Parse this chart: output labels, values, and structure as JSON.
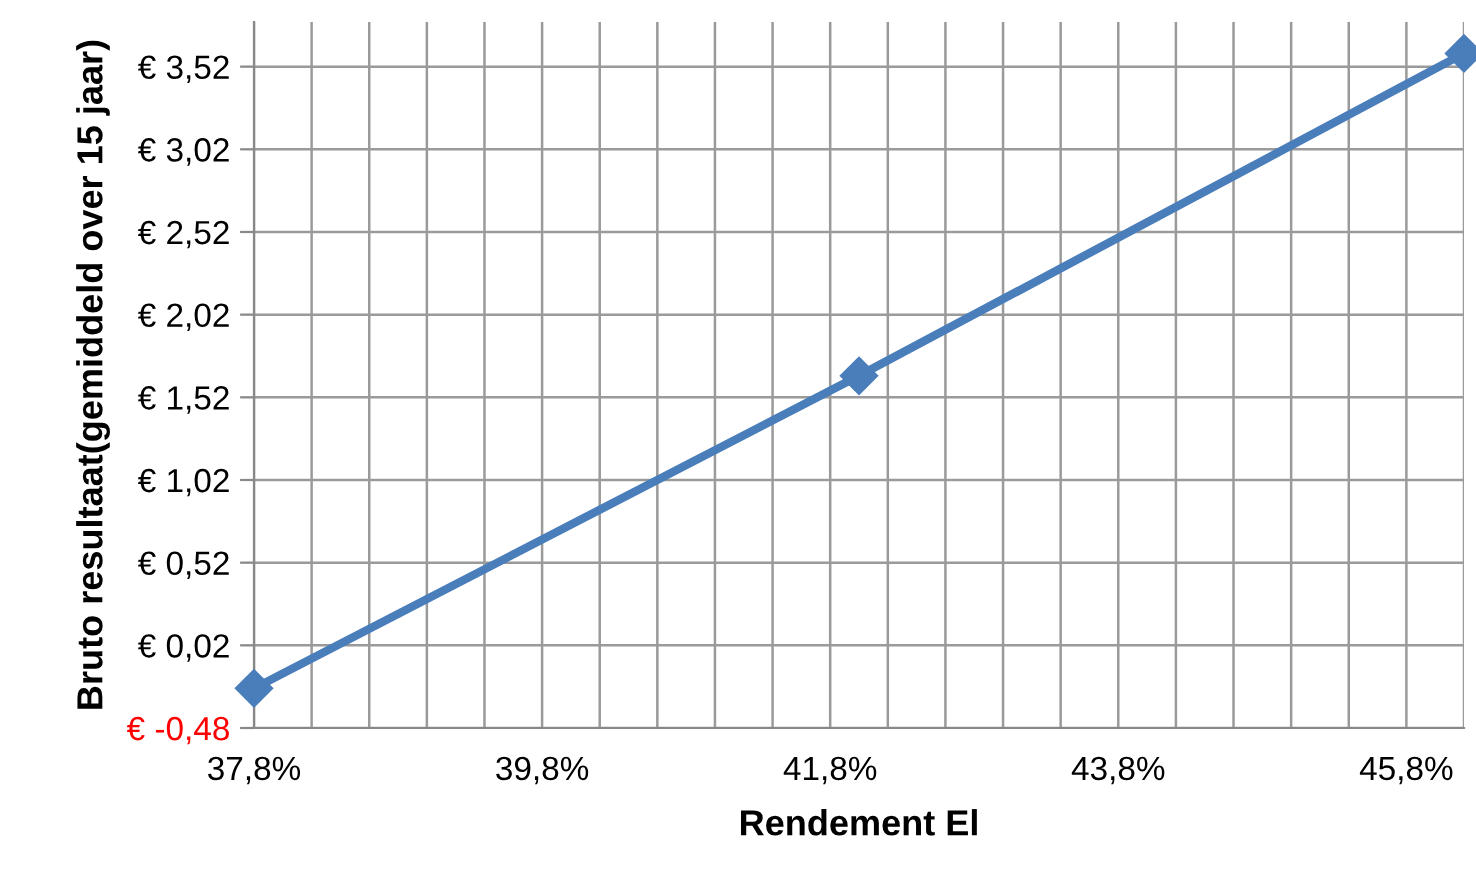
{
  "chart_data": {
    "type": "line",
    "xlabel": "Rendement El",
    "ylabel": "Bruto resultaat(gemiddeld over 15 jaar)",
    "x": [
      37.8,
      42.0,
      46.2
    ],
    "series": [
      {
        "color": "#4a7ebb",
        "values": [
          -0.24,
          1.65,
          3.6
        ]
      }
    ],
    "xlim": [
      37.8,
      46.2
    ],
    "xticks": [
      {
        "value": 37.8,
        "label": "37,8%"
      },
      {
        "value": 38.2,
        "label": null
      },
      {
        "value": 38.6,
        "label": null
      },
      {
        "value": 39.0,
        "label": null
      },
      {
        "value": 39.4,
        "label": null
      },
      {
        "value": 39.8,
        "label": "39,8%"
      },
      {
        "value": 40.2,
        "label": null
      },
      {
        "value": 40.6,
        "label": null
      },
      {
        "value": 41.0,
        "label": null
      },
      {
        "value": 41.4,
        "label": null
      },
      {
        "value": 41.8,
        "label": "41,8%"
      },
      {
        "value": 42.2,
        "label": null
      },
      {
        "value": 42.6,
        "label": null
      },
      {
        "value": 43.0,
        "label": null
      },
      {
        "value": 43.4,
        "label": null
      },
      {
        "value": 43.8,
        "label": "43,8%"
      },
      {
        "value": 44.2,
        "label": null
      },
      {
        "value": 44.6,
        "label": null
      },
      {
        "value": 45.0,
        "label": null
      },
      {
        "value": 45.4,
        "label": null
      },
      {
        "value": 45.8,
        "label": "45,8%"
      },
      {
        "value": 46.2,
        "label": null
      }
    ],
    "ylim": [
      -0.48,
      3.79
    ],
    "yticks": [
      {
        "value": -0.48,
        "label": "€ -0,48"
      },
      {
        "value": 0.02,
        "label": "€ 0,02"
      },
      {
        "value": 0.52,
        "label": "€ 0,52"
      },
      {
        "value": 1.02,
        "label": "€ 1,02"
      },
      {
        "value": 1.52,
        "label": "€ 1,52"
      },
      {
        "value": 2.02,
        "label": "€ 2,02"
      },
      {
        "value": 2.52,
        "label": "€ 2,52"
      },
      {
        "value": 3.02,
        "label": "€ 3,02"
      },
      {
        "value": 3.52,
        "label": "€ 3,52"
      }
    ],
    "grid": true,
    "marker": "diamond",
    "line_style": "solid",
    "legend": false
  }
}
